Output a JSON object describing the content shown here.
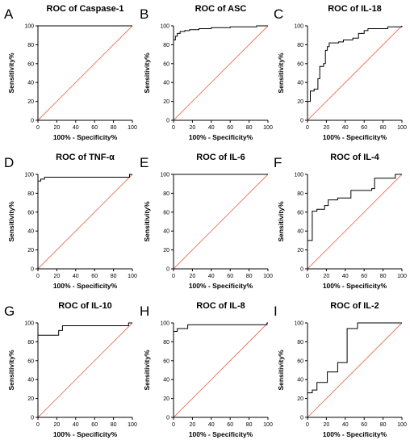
{
  "figure": {
    "ref_color": "#e8735a",
    "line_color": "#000000"
  },
  "chart_data": [
    {
      "type": "line",
      "panel": "A",
      "title": "ROC of Caspase-1",
      "xlabel": "100% - Specificity%",
      "ylabel": "Sensitivity%",
      "xlim": [
        0,
        100
      ],
      "ylim": [
        0,
        100
      ],
      "ticks": [
        0,
        20,
        40,
        60,
        80,
        100
      ],
      "roc": [
        [
          0,
          0
        ],
        [
          0,
          100
        ],
        [
          100,
          100
        ]
      ],
      "reference": [
        [
          0,
          0
        ],
        [
          100,
          100
        ]
      ]
    },
    {
      "type": "line",
      "panel": "B",
      "title": "ROC of ASC",
      "xlabel": "100% - Specificity%",
      "ylabel": "Sensitivity%",
      "xlim": [
        0,
        100
      ],
      "ylim": [
        0,
        100
      ],
      "ticks": [
        0,
        20,
        40,
        60,
        80,
        100
      ],
      "roc": [
        [
          0,
          0
        ],
        [
          0,
          85
        ],
        [
          2,
          85
        ],
        [
          2,
          89
        ],
        [
          4,
          89
        ],
        [
          4,
          92
        ],
        [
          7,
          92
        ],
        [
          7,
          94
        ],
        [
          12,
          94
        ],
        [
          12,
          95
        ],
        [
          17,
          95
        ],
        [
          17,
          96
        ],
        [
          27,
          96
        ],
        [
          27,
          97
        ],
        [
          40,
          97
        ],
        [
          40,
          98
        ],
        [
          60,
          98
        ],
        [
          60,
          99
        ],
        [
          88,
          99
        ],
        [
          88,
          100
        ],
        [
          100,
          100
        ]
      ],
      "reference": [
        [
          0,
          0
        ],
        [
          100,
          100
        ]
      ]
    },
    {
      "type": "line",
      "panel": "C",
      "title": "ROC of IL-18",
      "xlabel": "100% - Specificity%",
      "ylabel": "Sensitivity%",
      "xlim": [
        0,
        100
      ],
      "ylim": [
        0,
        100
      ],
      "ticks": [
        0,
        20,
        40,
        60,
        80,
        100
      ],
      "roc": [
        [
          0,
          0
        ],
        [
          0,
          20
        ],
        [
          3,
          20
        ],
        [
          3,
          31
        ],
        [
          7,
          31
        ],
        [
          7,
          33
        ],
        [
          11,
          33
        ],
        [
          11,
          44
        ],
        [
          13,
          44
        ],
        [
          13,
          57
        ],
        [
          17,
          57
        ],
        [
          17,
          60
        ],
        [
          19,
          60
        ],
        [
          19,
          74
        ],
        [
          21,
          74
        ],
        [
          21,
          78
        ],
        [
          23,
          78
        ],
        [
          23,
          82
        ],
        [
          33,
          82
        ],
        [
          33,
          83
        ],
        [
          38,
          83
        ],
        [
          38,
          85
        ],
        [
          48,
          85
        ],
        [
          48,
          87
        ],
        [
          54,
          87
        ],
        [
          54,
          92
        ],
        [
          60,
          92
        ],
        [
          60,
          95
        ],
        [
          64,
          95
        ],
        [
          64,
          97
        ],
        [
          85,
          97
        ],
        [
          85,
          99
        ],
        [
          100,
          99
        ],
        [
          100,
          100
        ]
      ],
      "reference": [
        [
          0,
          0
        ],
        [
          100,
          100
        ]
      ]
    },
    {
      "type": "line",
      "panel": "D",
      "title": "ROC of TNF-α",
      "xlabel": "100% - Specificity%",
      "ylabel": "Sensitivity%",
      "xlim": [
        0,
        100
      ],
      "ylim": [
        0,
        100
      ],
      "ticks": [
        0,
        20,
        40,
        60,
        80,
        100
      ],
      "roc": [
        [
          0,
          0
        ],
        [
          0,
          93
        ],
        [
          3,
          93
        ],
        [
          3,
          95
        ],
        [
          7,
          95
        ],
        [
          7,
          97
        ],
        [
          97,
          97
        ],
        [
          97,
          100
        ],
        [
          100,
          100
        ]
      ],
      "reference": [
        [
          0,
          0
        ],
        [
          100,
          100
        ]
      ]
    },
    {
      "type": "line",
      "panel": "E",
      "title": "ROC of IL-6",
      "xlabel": "100% - Specificity%",
      "ylabel": "Sensitivity%",
      "xlim": [
        0,
        100
      ],
      "ylim": [
        0,
        100
      ],
      "ticks": [
        0,
        20,
        40,
        60,
        80,
        100
      ],
      "roc": [
        [
          0,
          0
        ],
        [
          0,
          100
        ],
        [
          100,
          100
        ]
      ],
      "reference": [
        [
          0,
          0
        ],
        [
          100,
          100
        ]
      ]
    },
    {
      "type": "line",
      "panel": "F",
      "title": "ROC of IL-4",
      "xlabel": "100% - Specificity%",
      "ylabel": "Sensitivity%",
      "xlim": [
        0,
        100
      ],
      "ylim": [
        0,
        100
      ],
      "ticks": [
        0,
        20,
        40,
        60,
        80,
        100
      ],
      "roc": [
        [
          0,
          0
        ],
        [
          0,
          30
        ],
        [
          5,
          30
        ],
        [
          5,
          61
        ],
        [
          10,
          61
        ],
        [
          10,
          63
        ],
        [
          18,
          63
        ],
        [
          18,
          67
        ],
        [
          22,
          67
        ],
        [
          22,
          73
        ],
        [
          32,
          73
        ],
        [
          32,
          75
        ],
        [
          46,
          75
        ],
        [
          46,
          83
        ],
        [
          68,
          83
        ],
        [
          68,
          85
        ],
        [
          71,
          85
        ],
        [
          71,
          96
        ],
        [
          93,
          96
        ],
        [
          93,
          100
        ],
        [
          100,
          100
        ]
      ],
      "reference": [
        [
          0,
          0
        ],
        [
          100,
          100
        ]
      ]
    },
    {
      "type": "line",
      "panel": "G",
      "title": "ROC of IL-10",
      "xlabel": "100% - Specificity%",
      "ylabel": "Sensitivity%",
      "xlim": [
        0,
        100
      ],
      "ylim": [
        0,
        100
      ],
      "ticks": [
        0,
        20,
        40,
        60,
        80,
        100
      ],
      "roc": [
        [
          0,
          0
        ],
        [
          0,
          87
        ],
        [
          22,
          87
        ],
        [
          22,
          92
        ],
        [
          26,
          92
        ],
        [
          26,
          97
        ],
        [
          96,
          97
        ],
        [
          96,
          100
        ],
        [
          100,
          100
        ]
      ],
      "reference": [
        [
          0,
          0
        ],
        [
          100,
          100
        ]
      ]
    },
    {
      "type": "line",
      "panel": "H",
      "title": "ROC of IL-8",
      "xlabel": "100% - Specificity%",
      "ylabel": "Sensitivity%",
      "xlim": [
        0,
        100
      ],
      "ylim": [
        0,
        100
      ],
      "ticks": [
        0,
        20,
        40,
        60,
        80,
        100
      ],
      "roc": [
        [
          0,
          0
        ],
        [
          0,
          91
        ],
        [
          4,
          91
        ],
        [
          4,
          94
        ],
        [
          15,
          94
        ],
        [
          15,
          98
        ],
        [
          99,
          98
        ],
        [
          99,
          100
        ],
        [
          100,
          100
        ]
      ],
      "reference": [
        [
          0,
          0
        ],
        [
          100,
          100
        ]
      ]
    },
    {
      "type": "line",
      "panel": "I",
      "title": "ROC of IL-2",
      "xlabel": "100% - Specificity%",
      "ylabel": "Sensitivity%",
      "xlim": [
        0,
        100
      ],
      "ylim": [
        0,
        100
      ],
      "ticks": [
        0,
        20,
        40,
        60,
        80,
        100
      ],
      "roc": [
        [
          0,
          0
        ],
        [
          0,
          26
        ],
        [
          5,
          26
        ],
        [
          5,
          29
        ],
        [
          10,
          29
        ],
        [
          10,
          37
        ],
        [
          21,
          37
        ],
        [
          21,
          48
        ],
        [
          32,
          48
        ],
        [
          32,
          58
        ],
        [
          42,
          58
        ],
        [
          42,
          94
        ],
        [
          53,
          94
        ],
        [
          53,
          100
        ],
        [
          100,
          100
        ]
      ],
      "reference": [
        [
          0,
          0
        ],
        [
          100,
          100
        ]
      ]
    }
  ]
}
